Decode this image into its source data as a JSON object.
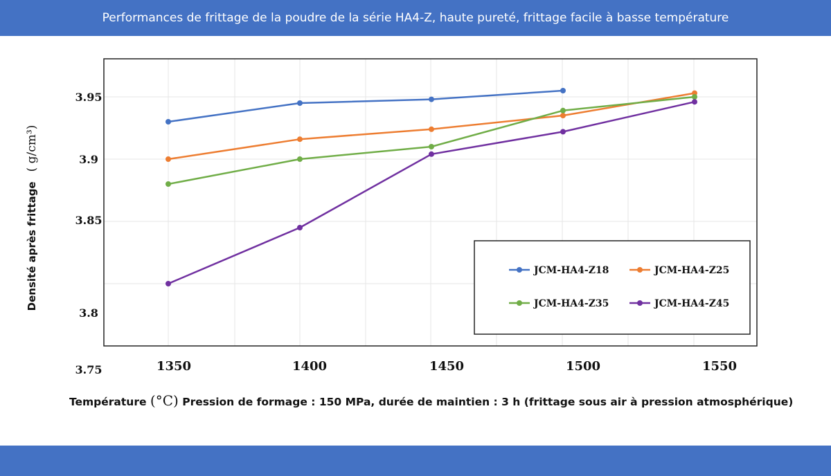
{
  "banner": {
    "title": "Performances de frittage de la poudre de la série HA4-Z, haute pureté, frittage facile à basse température",
    "color": "#4472c4"
  },
  "footer": {
    "xlabel": "Température",
    "xunit": "(°C)",
    "note": "Pression de formage : 150 MPa, durée de maintien : 3 h (frittage sous air à pression atmosphérique)"
  },
  "chart_data": {
    "type": "line",
    "title": "",
    "xlabel": "Température (°C)",
    "ylabel": "Densité après frittage",
    "yunit": "( g/cm³)",
    "x_ticks": [
      "1350",
      "1400",
      "1450",
      "1500",
      "1550"
    ],
    "y_ticks": [
      "3.75",
      "3.8",
      "3.85",
      "3.9",
      "3.95"
    ],
    "grid": true,
    "legend_position": "lower-right",
    "series": [
      {
        "name": "JCM-HA4-Z18",
        "color": "#4472c4",
        "x": [
          1350,
          1400,
          1450,
          1500
        ],
        "y": [
          3.93,
          3.945,
          3.948,
          3.955
        ]
      },
      {
        "name": "JCM-HA4-Z25",
        "color": "#ed7d31",
        "x": [
          1350,
          1400,
          1450,
          1500,
          1550
        ],
        "y": [
          3.9,
          3.916,
          3.924,
          3.935,
          3.953
        ]
      },
      {
        "name": "JCM-HA4-Z35",
        "color": "#70ad47",
        "x": [
          1350,
          1400,
          1450,
          1500,
          1550
        ],
        "y": [
          3.88,
          3.9,
          3.91,
          3.939,
          3.95
        ]
      },
      {
        "name": "JCM-HA4-Z45",
        "color": "#7030a0",
        "x": [
          1350,
          1400,
          1450,
          1500,
          1550
        ],
        "y": [
          3.8,
          3.845,
          3.904,
          3.922,
          3.946
        ]
      }
    ]
  }
}
